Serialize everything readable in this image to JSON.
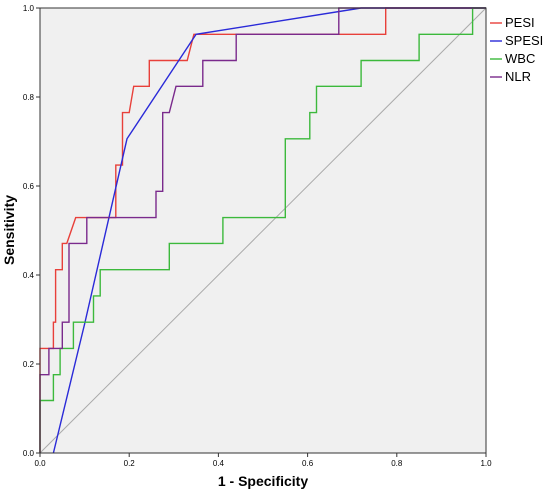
{
  "chart_data": {
    "type": "line",
    "xlabel": "1 - Specificity",
    "ylabel": "Sensitivity",
    "xlim": [
      0,
      1
    ],
    "ylim": [
      0,
      1
    ],
    "xticks": [
      "0.0",
      "0.2",
      "0.4",
      "0.6",
      "0.8",
      "1.0"
    ],
    "yticks": [
      "0.0",
      "0.2",
      "0.4",
      "0.6",
      "0.8",
      "1.0"
    ],
    "grid": false,
    "legend_position": "right",
    "background": "#f0f0f0",
    "series": [
      {
        "name": "PESI",
        "color": "#e8403a",
        "points": [
          [
            0,
            0
          ],
          [
            0,
            0.235
          ],
          [
            0.03,
            0.235
          ],
          [
            0.03,
            0.294
          ],
          [
            0.035,
            0.294
          ],
          [
            0.035,
            0.412
          ],
          [
            0.05,
            0.412
          ],
          [
            0.05,
            0.471
          ],
          [
            0.06,
            0.471
          ],
          [
            0.08,
            0.529
          ],
          [
            0.17,
            0.529
          ],
          [
            0.17,
            0.647
          ],
          [
            0.185,
            0.647
          ],
          [
            0.185,
            0.765
          ],
          [
            0.2,
            0.765
          ],
          [
            0.21,
            0.824
          ],
          [
            0.245,
            0.824
          ],
          [
            0.245,
            0.882
          ],
          [
            0.33,
            0.882
          ],
          [
            0.345,
            0.941
          ],
          [
            0.775,
            0.941
          ],
          [
            0.775,
            1.0
          ],
          [
            1.0,
            1.0
          ]
        ]
      },
      {
        "name": "SPESI",
        "color": "#2a2ad8",
        "points": [
          [
            0.03,
            0
          ],
          [
            0.1,
            0.29
          ],
          [
            0.195,
            0.706
          ],
          [
            0.35,
            0.941
          ],
          [
            0.72,
            1.0
          ],
          [
            1.0,
            1.0
          ]
        ]
      },
      {
        "name": "WBC",
        "color": "#3cb93c",
        "points": [
          [
            0,
            0
          ],
          [
            0,
            0.118
          ],
          [
            0.03,
            0.118
          ],
          [
            0.03,
            0.176
          ],
          [
            0.045,
            0.176
          ],
          [
            0.045,
            0.235
          ],
          [
            0.075,
            0.235
          ],
          [
            0.075,
            0.294
          ],
          [
            0.12,
            0.294
          ],
          [
            0.12,
            0.353
          ],
          [
            0.135,
            0.353
          ],
          [
            0.135,
            0.412
          ],
          [
            0.29,
            0.412
          ],
          [
            0.29,
            0.471
          ],
          [
            0.41,
            0.471
          ],
          [
            0.41,
            0.529
          ],
          [
            0.55,
            0.529
          ],
          [
            0.55,
            0.706
          ],
          [
            0.605,
            0.706
          ],
          [
            0.605,
            0.765
          ],
          [
            0.62,
            0.765
          ],
          [
            0.62,
            0.824
          ],
          [
            0.72,
            0.824
          ],
          [
            0.72,
            0.882
          ],
          [
            0.85,
            0.882
          ],
          [
            0.85,
            0.941
          ],
          [
            0.97,
            0.941
          ],
          [
            0.97,
            1.0
          ],
          [
            1.0,
            1.0
          ]
        ]
      },
      {
        "name": "NLR",
        "color": "#7a2a8c",
        "points": [
          [
            0,
            0
          ],
          [
            0,
            0.176
          ],
          [
            0.02,
            0.176
          ],
          [
            0.02,
            0.235
          ],
          [
            0.05,
            0.235
          ],
          [
            0.05,
            0.294
          ],
          [
            0.065,
            0.294
          ],
          [
            0.065,
            0.471
          ],
          [
            0.105,
            0.471
          ],
          [
            0.105,
            0.529
          ],
          [
            0.26,
            0.529
          ],
          [
            0.26,
            0.588
          ],
          [
            0.275,
            0.588
          ],
          [
            0.275,
            0.765
          ],
          [
            0.29,
            0.765
          ],
          [
            0.305,
            0.824
          ],
          [
            0.365,
            0.824
          ],
          [
            0.365,
            0.882
          ],
          [
            0.44,
            0.882
          ],
          [
            0.44,
            0.941
          ],
          [
            0.67,
            0.941
          ],
          [
            0.67,
            1.0
          ],
          [
            1.0,
            1.0
          ]
        ]
      }
    ],
    "reference_line": {
      "color": "#aaaaaa",
      "from": [
        0,
        0
      ],
      "to": [
        1,
        1
      ]
    }
  }
}
